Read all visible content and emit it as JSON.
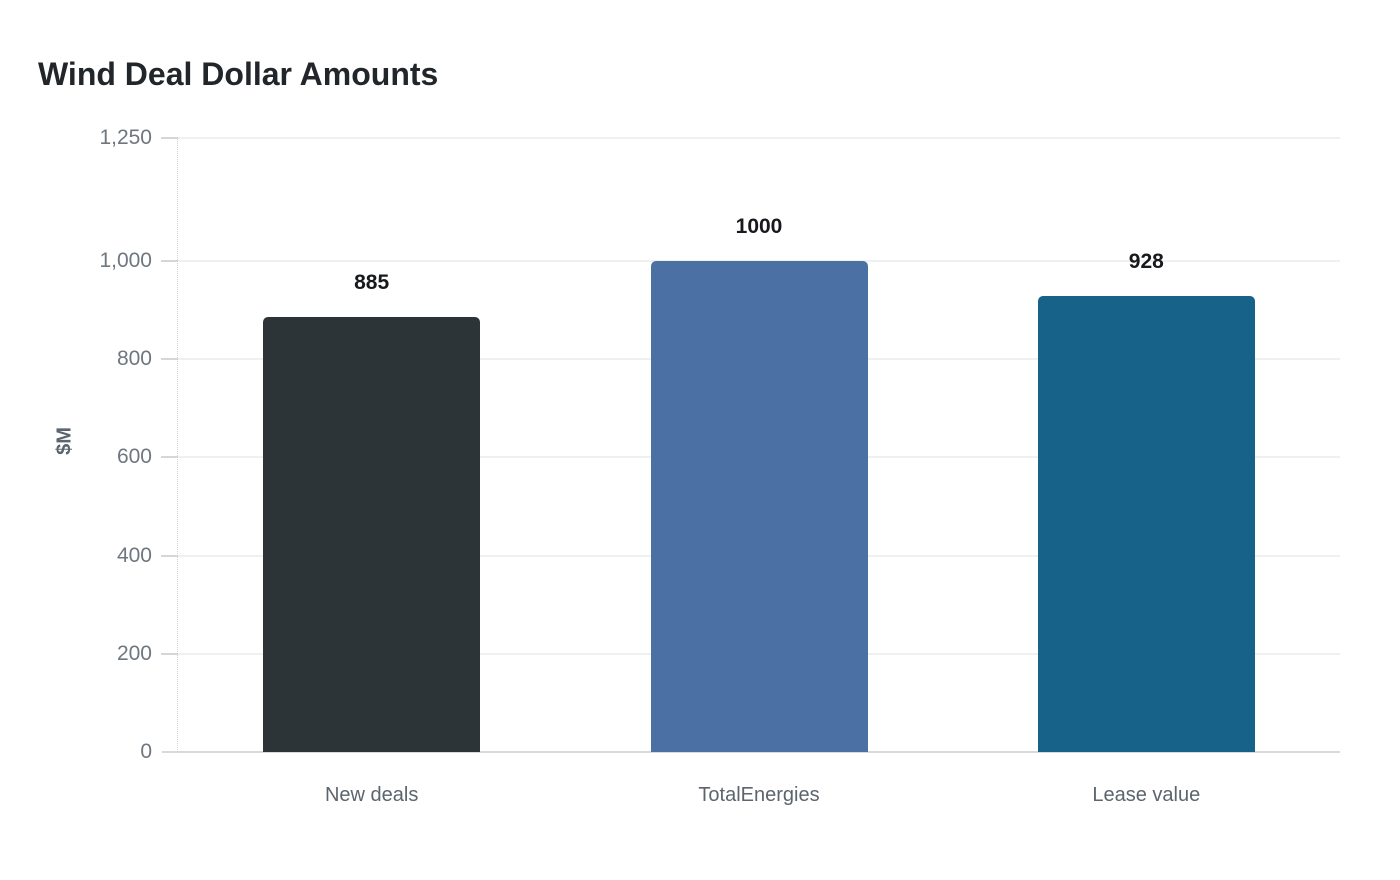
{
  "chart_data": {
    "type": "bar",
    "title": "Wind Deal Dollar Amounts",
    "ylabel": "$M",
    "xlabel": "",
    "categories": [
      "New deals",
      "TotalEnergies",
      "Lease value"
    ],
    "values": [
      885,
      1000,
      928
    ],
    "value_labels": [
      "885",
      "1000",
      "928"
    ],
    "bar_colors": [
      "#2d3437",
      "#4a70a4",
      "#176289"
    ],
    "ylim": [
      0,
      1250
    ],
    "yticks": [
      0,
      200,
      400,
      600,
      800,
      1000,
      1250
    ],
    "ytick_labels": [
      "0",
      "200",
      "400",
      "600",
      "800",
      "1,000",
      "1,250"
    ],
    "grid": "horizontal",
    "legend": "none",
    "background": "#ffffff",
    "colors": {
      "title_text": "#21262b",
      "axis_text": "#6e7780",
      "category_text": "#5c646d",
      "value_text": "#17191c",
      "gridline": "#f0f0f0",
      "baseline": "#d9d9d9"
    }
  }
}
